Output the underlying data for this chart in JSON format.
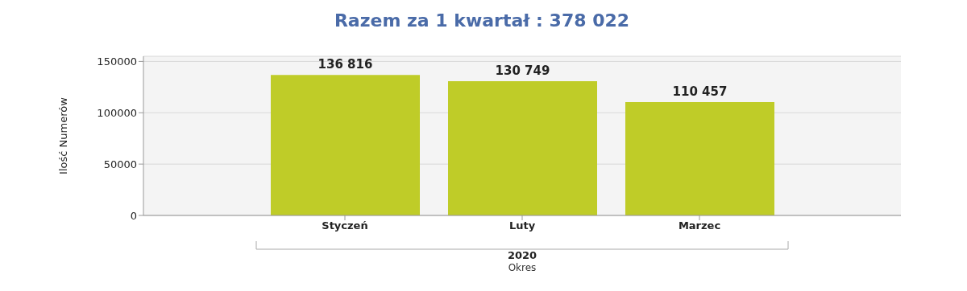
{
  "chart_data": {
    "type": "bar",
    "title": "Razem za 1 kwartał : 378 022",
    "xlabel": "Okres",
    "ylabel": "Ilość Numerów",
    "categories": [
      "Styczeń",
      "Luty",
      "Marzec"
    ],
    "values": [
      136816,
      130749,
      110457
    ],
    "value_labels": [
      "136 816",
      "130 749",
      "110 457"
    ],
    "color": "#bfcc28",
    "ylim": [
      0,
      155000
    ],
    "yticks": [
      0,
      50000,
      100000,
      150000
    ],
    "grid": "y",
    "annotations": [
      "2020"
    ]
  }
}
